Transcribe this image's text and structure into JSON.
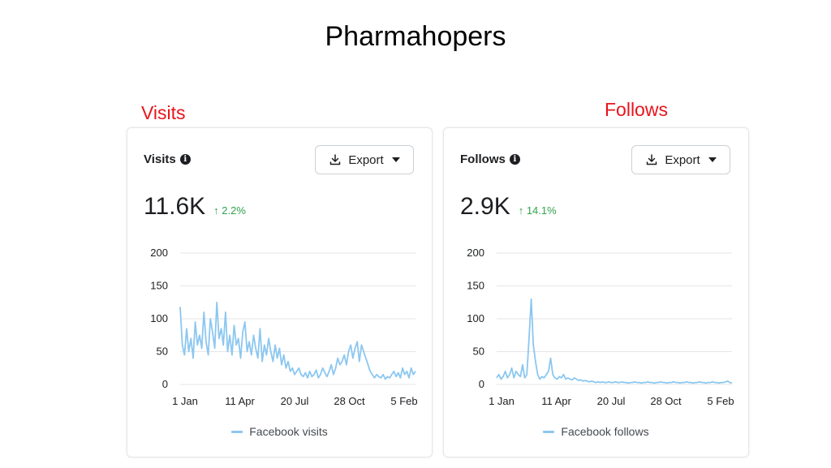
{
  "page": {
    "title": "Pharmahopers"
  },
  "labels": {
    "left": "Visits",
    "right": "Follows"
  },
  "cards": [
    {
      "title": "Visits",
      "info_icon": "info-circle-icon",
      "export_label": "Export",
      "value": "11.6K",
      "delta": "↑ 2.2%",
      "legend": "Facebook visits"
    },
    {
      "title": "Follows",
      "info_icon": "info-circle-icon",
      "export_label": "Export",
      "value": "2.9K",
      "delta": "↑ 14.1%",
      "legend": "Facebook follows"
    }
  ],
  "colors": {
    "line": "#8cc7f0",
    "delta": "#31a24c",
    "label": "#e8141b"
  },
  "chart_data": [
    {
      "type": "line",
      "xlabel": "",
      "ylabel": "",
      "ylim": [
        0,
        200
      ],
      "y_ticks": [
        "0",
        "50",
        "100",
        "150",
        "200"
      ],
      "x_ticks": [
        "1 Jan",
        "11 Apr",
        "20 Jul",
        "28 Oct",
        "5 Feb"
      ],
      "grid": true,
      "legend_position": "bottom",
      "series": [
        {
          "name": "Facebook visits",
          "values": [
            118,
            60,
            45,
            85,
            50,
            70,
            40,
            95,
            60,
            75,
            55,
            110,
            65,
            45,
            100,
            80,
            55,
            125,
            70,
            85,
            60,
            110,
            50,
            75,
            45,
            90,
            60,
            70,
            40,
            80,
            95,
            50,
            65,
            45,
            75,
            55,
            40,
            85,
            35,
            60,
            45,
            70,
            50,
            35,
            60,
            40,
            55,
            30,
            45,
            25,
            35,
            20,
            25,
            15,
            20,
            25,
            15,
            12,
            18,
            10,
            20,
            12,
            15,
            22,
            10,
            15,
            25,
            18,
            12,
            20,
            30,
            15,
            25,
            40,
            30,
            35,
            45,
            30,
            50,
            60,
            40,
            55,
            65,
            35,
            60,
            50,
            40,
            30,
            20,
            15,
            10,
            15,
            12,
            10,
            15,
            8,
            12,
            10,
            15,
            20,
            12,
            18,
            10,
            25,
            15,
            20,
            10,
            25,
            15,
            20
          ]
        }
      ]
    },
    {
      "type": "line",
      "xlabel": "",
      "ylabel": "",
      "ylim": [
        0,
        200
      ],
      "y_ticks": [
        "0",
        "50",
        "100",
        "150",
        "200"
      ],
      "x_ticks": [
        "1 Jan",
        "11 Apr",
        "20 Jul",
        "28 Oct",
        "5 Feb"
      ],
      "grid": true,
      "legend_position": "bottom",
      "series": [
        {
          "name": "Facebook follows",
          "values": [
            10,
            15,
            8,
            12,
            20,
            10,
            15,
            25,
            10,
            20,
            15,
            12,
            30,
            10,
            15,
            70,
            130,
            60,
            35,
            15,
            8,
            12,
            10,
            15,
            20,
            40,
            15,
            10,
            8,
            12,
            10,
            15,
            8,
            10,
            8,
            7,
            10,
            8,
            6,
            7,
            5,
            6,
            5,
            4,
            5,
            4,
            3,
            4,
            3,
            4,
            3,
            3,
            4,
            3,
            3,
            4,
            3,
            3,
            4,
            3,
            3,
            2,
            3,
            3,
            4,
            3,
            3,
            2,
            3,
            3,
            4,
            3,
            3,
            2,
            3,
            3,
            4,
            3,
            3,
            2,
            3,
            3,
            4,
            3,
            3,
            2,
            3,
            3,
            4,
            3,
            3,
            2,
            3,
            3,
            4,
            3,
            3,
            2,
            3,
            3,
            4,
            3,
            3,
            2,
            3,
            3,
            4,
            5,
            3,
            2
          ]
        }
      ]
    }
  ]
}
